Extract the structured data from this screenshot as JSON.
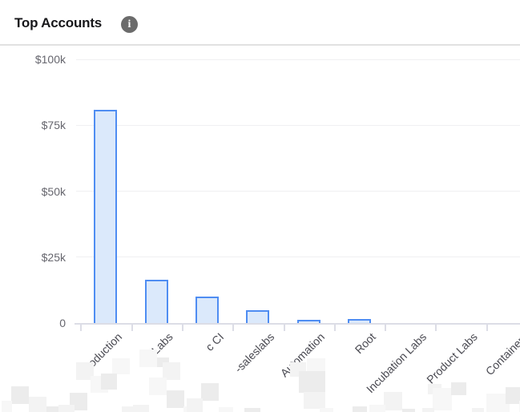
{
  "header": {
    "title": "Top Accounts",
    "info_icon_glyph": "i"
  },
  "chart_data": {
    "type": "bar",
    "title": "Top Accounts",
    "categories": [
      "Production",
      "Labs",
      "c CI",
      "-saleslabs",
      "Automation",
      "Root",
      "Incubation Labs",
      "Product Labs",
      "Containers"
    ],
    "values": [
      81000,
      16500,
      10000,
      5000,
      1300,
      1500,
      0,
      0,
      0
    ],
    "y_ticks": [
      {
        "label": "$100k",
        "value": 100000
      },
      {
        "label": "$75k",
        "value": 75000
      },
      {
        "label": "$50k",
        "value": 50000
      },
      {
        "label": "$25k",
        "value": 25000
      },
      {
        "label": "0",
        "value": 0
      }
    ],
    "ylim": [
      0,
      100000
    ],
    "xlabel": "",
    "ylabel": "",
    "grid": true,
    "legend": false,
    "note": "Leading parts of several x-axis account names are pixelated/redacted in the screenshot",
    "colors": {
      "bar_fill": "#dbe9fb",
      "bar_border": "#4f8df2",
      "axis_line": "#dcdde6",
      "grid_line": "#f0f0f2",
      "y_label_text": "#66666e",
      "x_label_text": "#4a4a52",
      "title_text": "#17171a",
      "info_icon_bg": "#6b6b6b",
      "info_icon_fg": "#ffffff"
    }
  }
}
